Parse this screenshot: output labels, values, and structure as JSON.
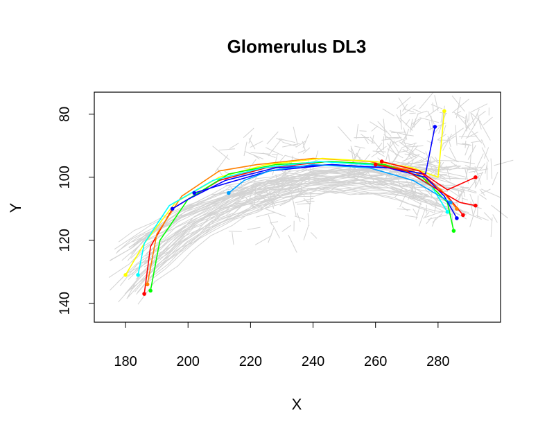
{
  "chart_data": {
    "type": "line",
    "title": "Glomerulus DL3",
    "xlabel": "X",
    "ylabel": "Y",
    "xlim": [
      170,
      300
    ],
    "ylim": [
      146,
      73
    ],
    "y_axis_reversed": true,
    "x_ticks": [
      180,
      200,
      220,
      240,
      260,
      280
    ],
    "y_ticks": [
      80,
      100,
      120,
      140
    ],
    "x_tick_labels": [
      "180",
      "200",
      "220",
      "240",
      "260",
      "280"
    ],
    "y_tick_labels": [
      "80",
      "100",
      "120",
      "140"
    ],
    "grid": false,
    "legend": "none",
    "background_color": "#d3d3d3",
    "background_description": "many gray neuron traces",
    "series": [
      {
        "color": "#ff0000",
        "x": [
          186,
          188,
          195,
          210,
          225,
          245,
          262,
          275,
          283,
          288
        ],
        "y": [
          137,
          122,
          110,
          101,
          97,
          95,
          96,
          99,
          106,
          112
        ]
      },
      {
        "color": "#ff8000",
        "x": [
          187,
          190,
          198,
          210,
          222,
          240,
          258,
          272,
          281,
          286
        ],
        "y": [
          134,
          118,
          106,
          98,
          96,
          94,
          95,
          98,
          104,
          110
        ]
      },
      {
        "color": "#ffff00",
        "x": [
          180,
          186,
          196,
          210,
          225,
          243,
          260,
          272,
          280,
          282
        ],
        "y": [
          131,
          121,
          108,
          100,
          96,
          94,
          95,
          97,
          100,
          79
        ]
      },
      {
        "color": "#00ff00",
        "x": [
          188,
          191,
          200,
          213,
          228,
          246,
          263,
          275,
          283,
          285
        ],
        "y": [
          136,
          120,
          107,
          99,
          96,
          95,
          96,
          100,
          108,
          117
        ]
      },
      {
        "color": "#00ffff",
        "x": [
          184,
          186,
          194,
          208,
          224,
          242,
          258,
          270,
          278,
          283
        ],
        "y": [
          131,
          121,
          109,
          101,
          97,
          95,
          96,
          98,
          103,
          111
        ]
      },
      {
        "color": "#0000ff",
        "x": [
          195,
          200,
          212,
          228,
          246,
          264,
          276,
          282,
          286
        ],
        "y": [
          110,
          107,
          101,
          97,
          96,
          97,
          100,
          106,
          113
        ]
      },
      {
        "color": "#0000ff",
        "x": [
          202,
          212,
          226,
          246,
          264,
          276,
          279
        ],
        "y": [
          105,
          102,
          98,
          96,
          97,
          99,
          84
        ]
      },
      {
        "color": "#00a0ff",
        "x": [
          213,
          218,
          226,
          240,
          258,
          272,
          284
        ],
        "y": [
          105,
          101,
          98,
          96,
          97,
          101,
          108
        ]
      },
      {
        "color": "#ff0000",
        "x": [
          262,
          266,
          274,
          283,
          292
        ],
        "y": [
          95,
          96,
          98,
          104,
          100
        ]
      },
      {
        "color": "#ff0000",
        "x": [
          260,
          270,
          280,
          287,
          292
        ],
        "y": [
          96,
          98,
          104,
          108,
          109
        ]
      }
    ]
  }
}
